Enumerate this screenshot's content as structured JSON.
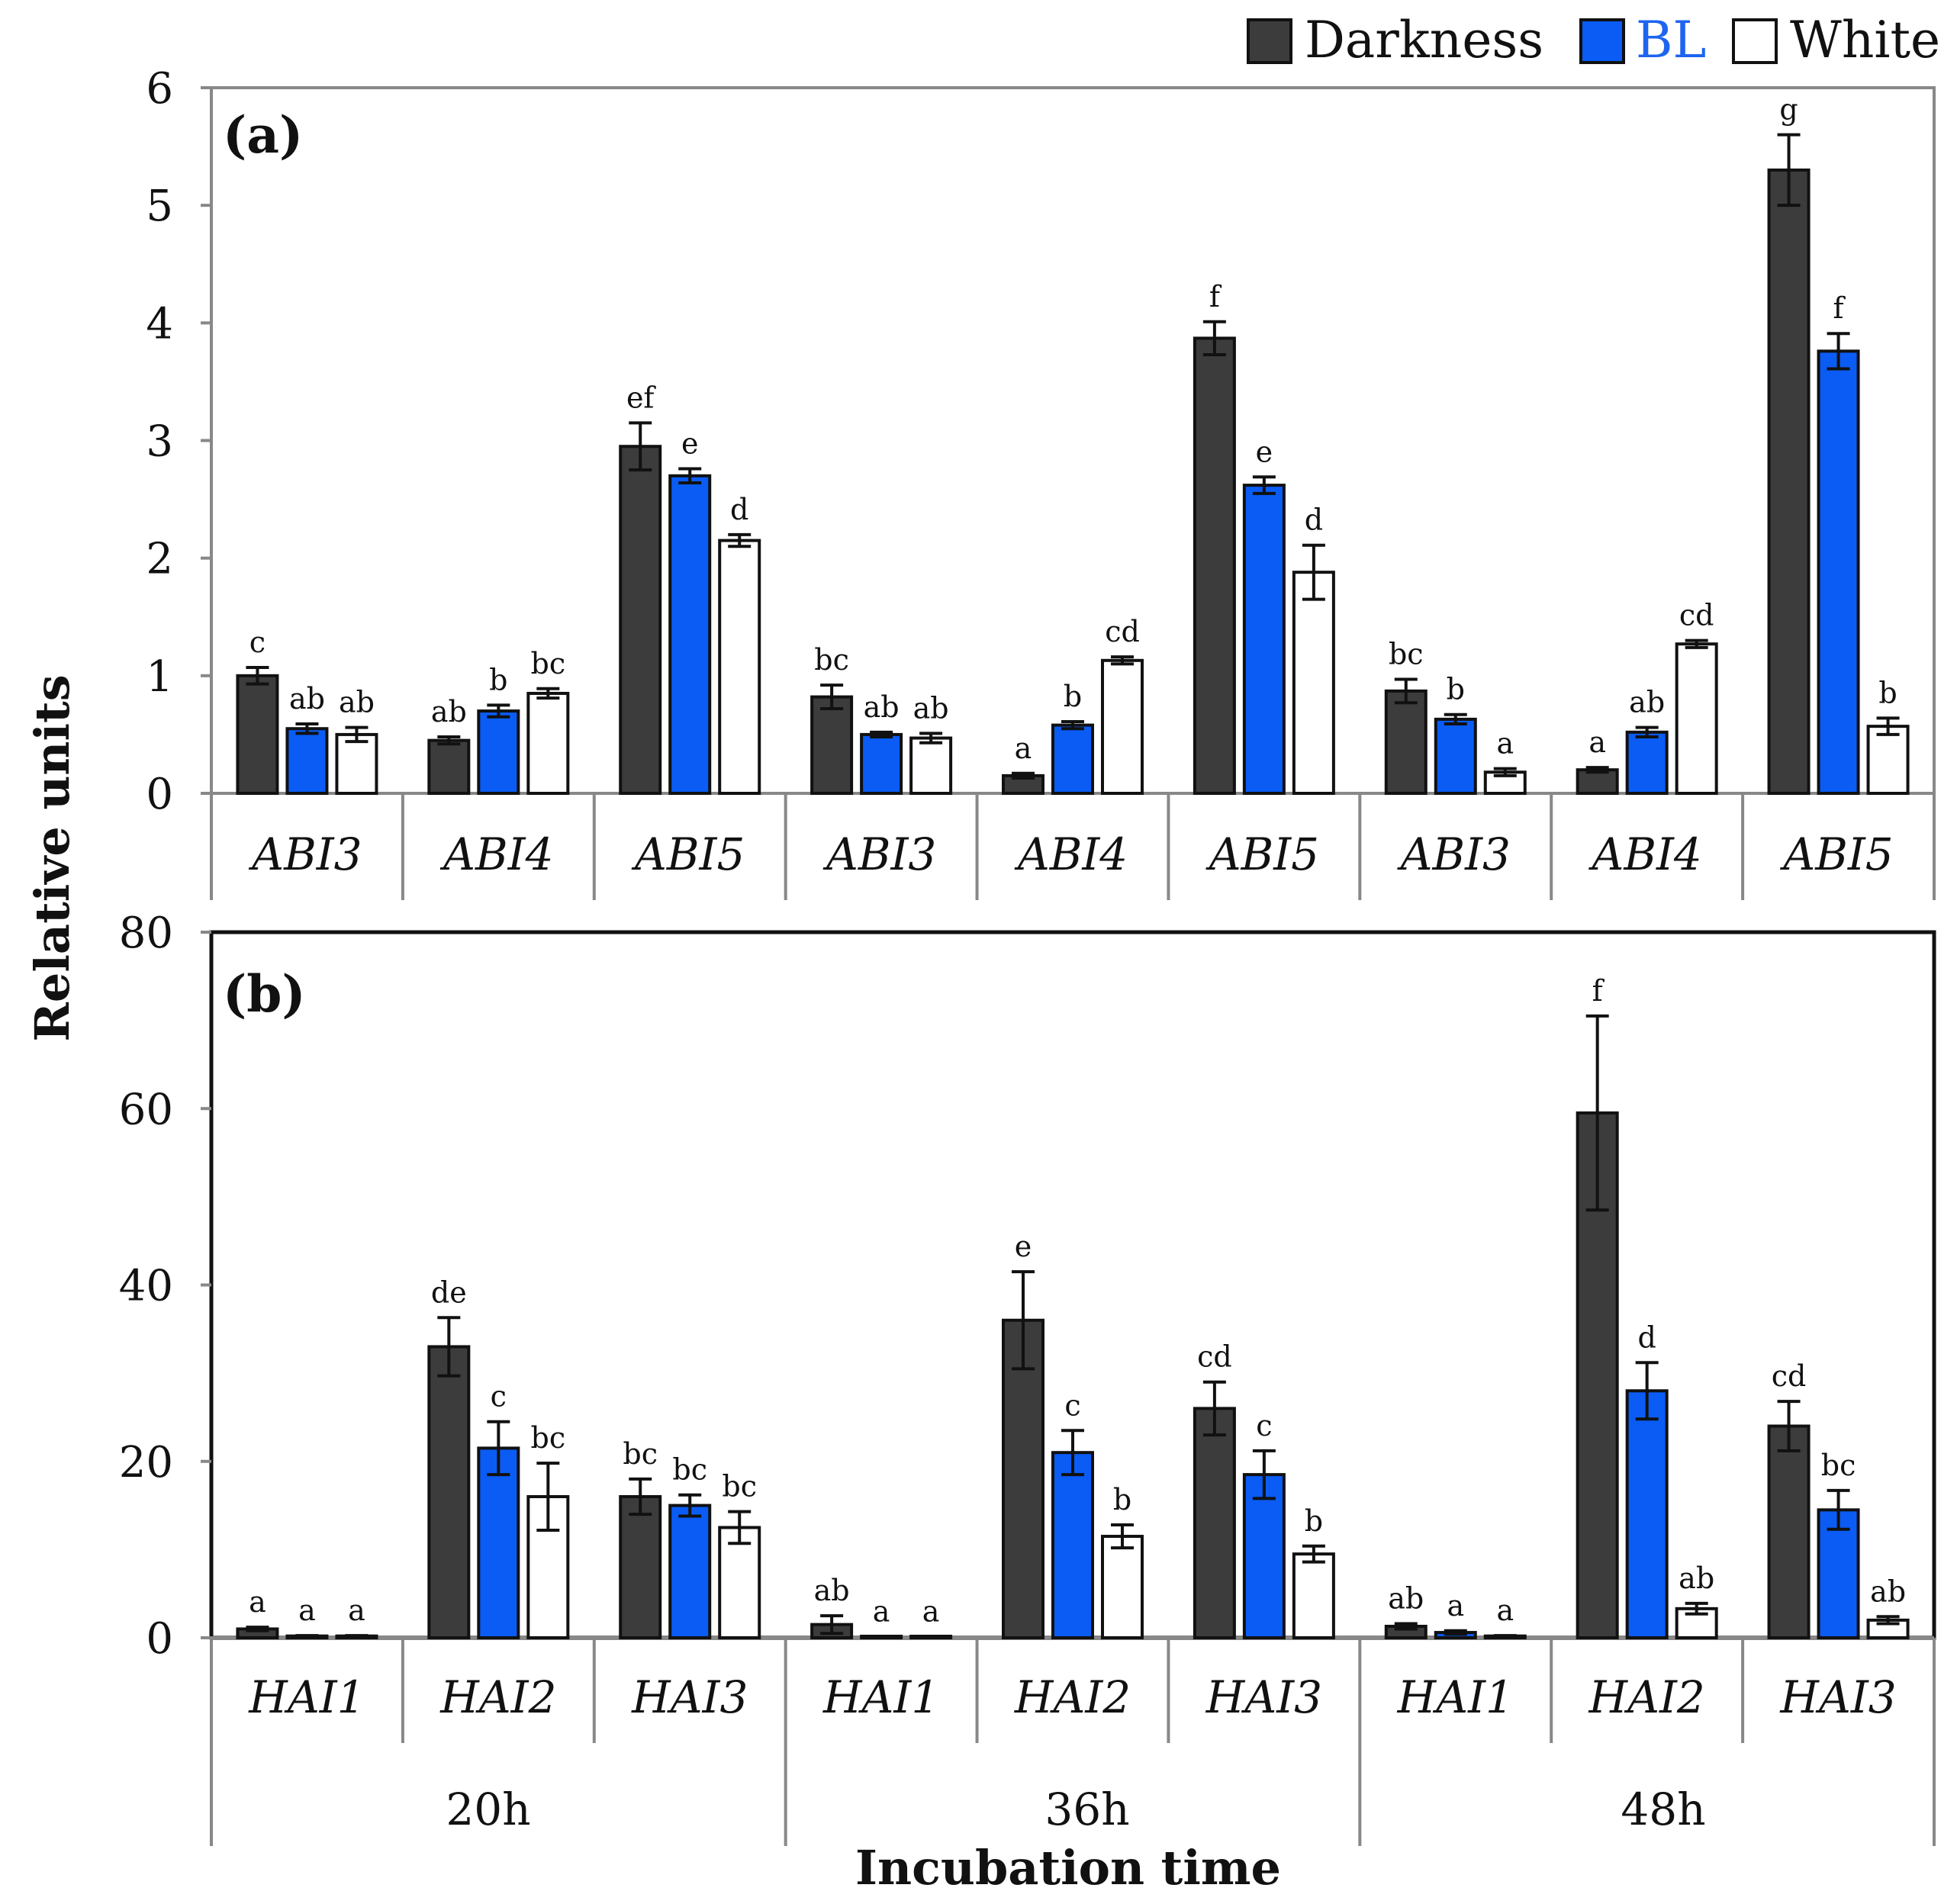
{
  "legend": [
    {
      "name": "Darkness",
      "color": "#3c3c3c",
      "text_color": "#111111"
    },
    {
      "name": "BL",
      "color": "#0a5cf5",
      "text_color": "#1e64f0"
    },
    {
      "name": "White",
      "color": "#ffffff",
      "text_color": "#111111"
    }
  ],
  "y_axis_title": "Relative units",
  "x_axis_title": "Incubation time",
  "time_groups": [
    "20h",
    "36h",
    "48h"
  ],
  "chart_data": [
    {
      "type": "bar",
      "panel_label": "(a)",
      "categories": [
        "ABI3",
        "ABI4",
        "ABI5",
        "ABI3",
        "ABI4",
        "ABI5",
        "ABI3",
        "ABI4",
        "ABI5"
      ],
      "ylim": [
        0,
        6
      ],
      "yticks": [
        "0",
        "1",
        "2",
        "3",
        "4",
        "5",
        "6"
      ],
      "series": [
        {
          "name": "Darkness",
          "values": [
            1.0,
            0.45,
            2.95,
            0.82,
            0.15,
            3.87,
            0.87,
            0.2,
            5.3
          ],
          "errors": [
            0.07,
            0.03,
            0.2,
            0.1,
            0.02,
            0.14,
            0.1,
            0.02,
            0.3
          ],
          "letters": [
            "c",
            "ab",
            "ef",
            "bc",
            "a",
            "f",
            "bc",
            "a",
            "g"
          ]
        },
        {
          "name": "BL",
          "values": [
            0.55,
            0.7,
            2.7,
            0.5,
            0.58,
            2.62,
            0.63,
            0.52,
            3.76
          ],
          "errors": [
            0.04,
            0.05,
            0.06,
            0.02,
            0.03,
            0.07,
            0.04,
            0.04,
            0.15
          ],
          "letters": [
            "ab",
            "b",
            "e",
            "ab",
            "b",
            "e",
            "b",
            "ab",
            "f"
          ]
        },
        {
          "name": "White",
          "values": [
            0.5,
            0.85,
            2.15,
            0.47,
            1.13,
            1.88,
            0.18,
            1.27,
            0.57
          ],
          "errors": [
            0.06,
            0.04,
            0.05,
            0.04,
            0.03,
            0.23,
            0.03,
            0.03,
            0.07
          ],
          "letters": [
            "ab",
            "bc",
            "d",
            "ab",
            "cd",
            "d",
            "a",
            "cd",
            "b"
          ]
        }
      ]
    },
    {
      "type": "bar",
      "panel_label": "(b)",
      "categories": [
        "HAI1",
        "HAI2",
        "HAI3",
        "HAI1",
        "HAI2",
        "HAI3",
        "HAI1",
        "HAI2",
        "HAI3"
      ],
      "ylim": [
        0,
        80
      ],
      "yticks": [
        "0",
        "20",
        "40",
        "60",
        "80"
      ],
      "series": [
        {
          "name": "Darkness",
          "values": [
            1.0,
            33.0,
            16.0,
            1.5,
            36.0,
            26.0,
            1.3,
            59.5,
            24.0
          ],
          "errors": [
            0.2,
            3.3,
            2.0,
            1.0,
            5.5,
            3.0,
            0.3,
            11.0,
            2.8
          ],
          "letters": [
            "a",
            "de",
            "bc",
            "ab",
            "e",
            "cd",
            "ab",
            "f",
            "cd"
          ]
        },
        {
          "name": "BL",
          "values": [
            0.2,
            21.5,
            15.0,
            0.1,
            21.0,
            18.5,
            0.6,
            28.0,
            14.5
          ],
          "errors": [
            0.05,
            3.0,
            1.2,
            0.05,
            2.5,
            2.7,
            0.2,
            3.2,
            2.2
          ],
          "letters": [
            "a",
            "c",
            "bc",
            "a",
            "c",
            "c",
            "a",
            "d",
            "bc"
          ]
        },
        {
          "name": "White",
          "values": [
            0.2,
            16.0,
            12.5,
            0.1,
            11.5,
            9.5,
            0.2,
            3.3,
            2.0
          ],
          "errors": [
            0.05,
            3.8,
            1.8,
            0.05,
            1.3,
            0.9,
            0.05,
            0.6,
            0.4
          ],
          "letters": [
            "a",
            "bc",
            "bc",
            "a",
            "b",
            "b",
            "a",
            "ab",
            "ab"
          ]
        }
      ]
    }
  ]
}
